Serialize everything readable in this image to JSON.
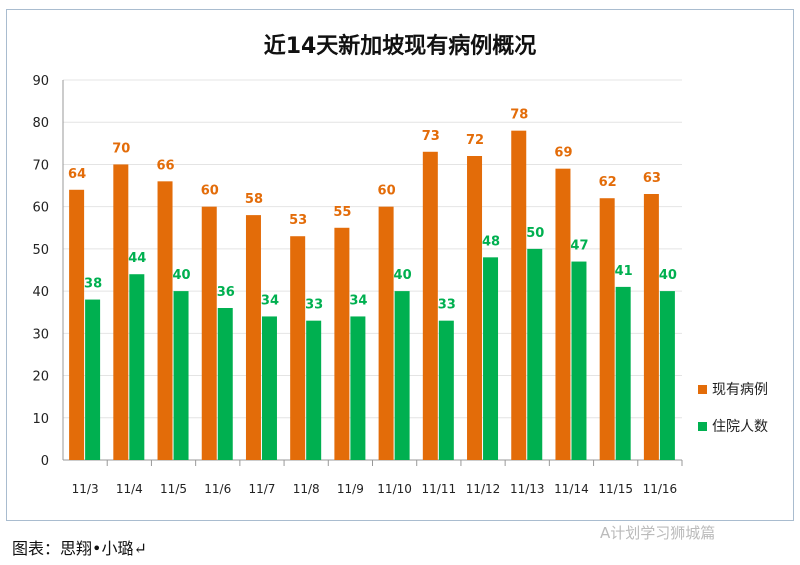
{
  "chart_data": {
    "type": "bar",
    "title": "近14天新加坡现有病例概况",
    "categories": [
      "11/3",
      "11/4",
      "11/5",
      "11/6",
      "11/7",
      "11/8",
      "11/9",
      "11/10",
      "11/11",
      "11/12",
      "11/13",
      "11/14",
      "11/15",
      "11/16"
    ],
    "series": [
      {
        "name": "现有病例",
        "color": "#e36c09",
        "values": [
          64,
          70,
          66,
          60,
          58,
          53,
          55,
          60,
          73,
          72,
          78,
          69,
          62,
          63
        ]
      },
      {
        "name": "住院人数",
        "color": "#00b050",
        "values": [
          38,
          44,
          40,
          36,
          34,
          33,
          34,
          40,
          33,
          48,
          50,
          47,
          41,
          40
        ]
      }
    ],
    "ylim": [
      0,
      90
    ],
    "yticks": [
      0,
      10,
      20,
      30,
      40,
      50,
      60,
      70,
      80,
      90
    ],
    "grid": true,
    "legend": "right"
  },
  "caption": "图表：思翔•小璐↵",
  "watermark": "A计划学习狮城篇"
}
